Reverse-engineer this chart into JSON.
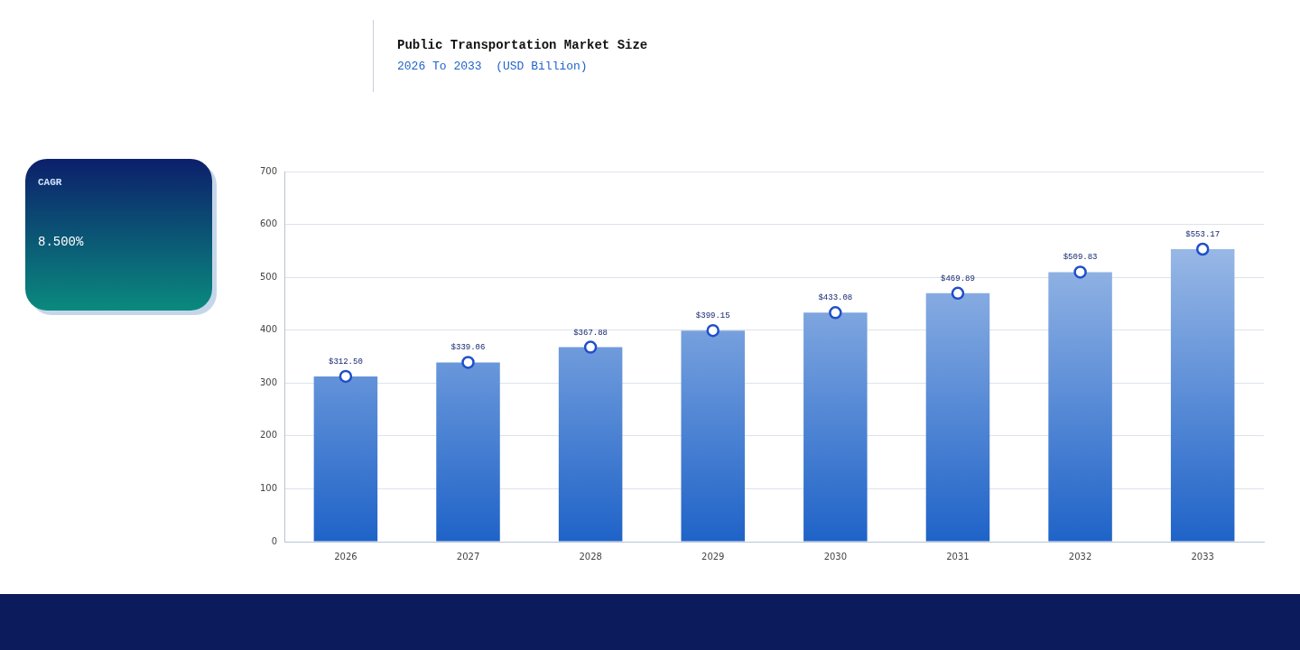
{
  "chart_data": [
    {
      "type": "other",
      "title": "CAGR",
      "annotations": [
        "8.500%"
      ]
    },
    {
      "type": "bar",
      "title": "Public Transportation Market Size",
      "subtitle": "2026 To 2033  (USD Billion)",
      "categories": [
        "2026",
        "2027",
        "2028",
        "2029",
        "2030",
        "2031",
        "2032",
        "2033"
      ],
      "series": [
        {
          "color": "#1f63c8",
          "values": [
            312.5,
            339.06,
            367.88,
            399.15,
            433.08,
            469.89,
            509.83,
            553.17
          ],
          "value_labels": [
            "$312.50",
            "$339.06",
            "$367.88",
            "$399.15",
            "$433.08",
            "$469.89",
            "$509.83",
            "$553.17"
          ]
        },
        {
          "type": "scatter",
          "color": "#1f4fc8",
          "values": [
            312.5,
            339.06,
            367.88,
            399.15,
            433.08,
            469.89,
            509.83,
            553.17
          ]
        }
      ],
      "marker": "circle",
      "ylim": [
        0,
        700
      ],
      "yticks": [
        0,
        100,
        200,
        300,
        400,
        500,
        600,
        700
      ],
      "grid": "y",
      "legend": false
    }
  ]
}
